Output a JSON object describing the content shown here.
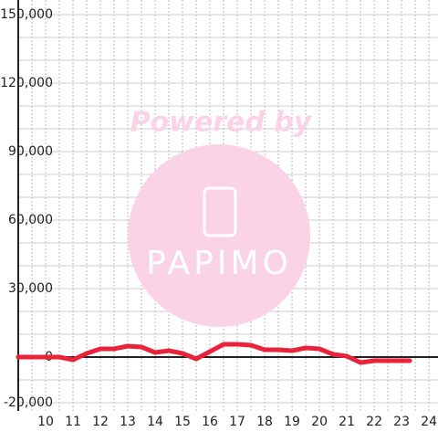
{
  "chart_data": {
    "type": "line",
    "watermark": {
      "line1": "Powered by",
      "line2": "PAPIMO"
    },
    "x": [
      9,
      9.5,
      10,
      10.5,
      11,
      11.5,
      12,
      12.5,
      13,
      13.5,
      14,
      14.5,
      15,
      15.5,
      16,
      16.5,
      17,
      17.5,
      18,
      18.5,
      19,
      19.5,
      20,
      20.5,
      21,
      21.5,
      22,
      22.5,
      23,
      23.3
    ],
    "series": [
      {
        "color": "#e8233a",
        "values": [
          0,
          0,
          0,
          0,
          -1200,
          1600,
          3600,
          3600,
          4800,
          4400,
          2000,
          2800,
          1600,
          -800,
          2400,
          5600,
          5600,
          5200,
          3200,
          3200,
          2800,
          4000,
          3600,
          1200,
          400,
          -2400,
          -1600,
          -1600,
          -1600,
          -1600
        ]
      }
    ],
    "xlim": [
      9,
      24.33
    ],
    "xticks": [
      10,
      11,
      12,
      13,
      14,
      15,
      16,
      17,
      18,
      19,
      20,
      21,
      22,
      23,
      24
    ],
    "xminorticks": [
      9.5,
      10.5,
      11.5,
      12.5,
      13.5,
      14.5,
      15.5,
      16.5,
      17.5,
      18.5,
      19.5,
      20.5,
      21.5,
      22.5,
      23.5
    ],
    "ylim": [
      -20000,
      150000
    ],
    "yticks": [
      {
        "value": -20000,
        "label": "-20,000"
      },
      0,
      {
        "value": 30000,
        "label": "30,000"
      },
      {
        "value": 60000,
        "label": "60,000"
      },
      {
        "value": 90000,
        "label": "90,000"
      },
      {
        "value": 120000,
        "label": "120,000"
      },
      {
        "value": 150000,
        "label": "150,000"
      }
    ],
    "yminorticks": [
      -10000,
      10000,
      20000,
      40000,
      50000,
      70000,
      80000,
      100000,
      110000,
      130000,
      140000
    ],
    "grid": true
  }
}
